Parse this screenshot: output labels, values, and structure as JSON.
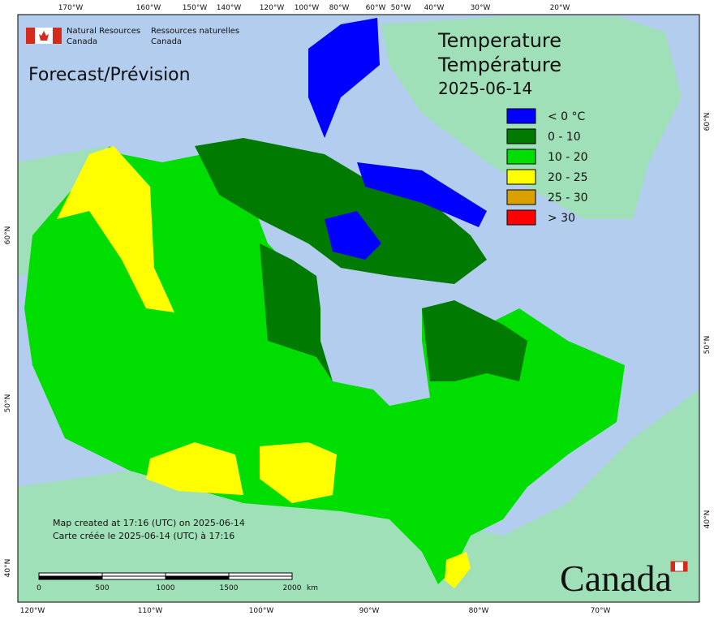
{
  "header": {
    "agency_en": "Natural Resources",
    "agency_en_2": "Canada",
    "agency_fr": "Ressources naturelles",
    "agency_fr_2": "Canada"
  },
  "product": "Forecast/Prévision",
  "title": {
    "en": "Temperature",
    "fr": "Température",
    "date": "2025-06-14"
  },
  "legend": [
    {
      "label": "< 0 °C",
      "color": "#0000ff"
    },
    {
      "label": "0 - 10",
      "color": "#007a00"
    },
    {
      "label": "10 - 20",
      "color": "#00dd00"
    },
    {
      "label": "20 - 25",
      "color": "#ffff00"
    },
    {
      "label": "25 - 30",
      "color": "#d9a000"
    },
    {
      "label": "> 30",
      "color": "#ff0000"
    }
  ],
  "graticule": {
    "top": [
      "170°W",
      "160°W",
      "150°W",
      "140°W",
      "120°W",
      "100°W",
      "80°W",
      "60°W",
      "50°W",
      "40°W",
      "30°W",
      "20°W"
    ],
    "bottom": [
      "120°W",
      "110°W",
      "100°W",
      "90°W",
      "80°W",
      "70°W"
    ],
    "left": [
      "60°N",
      "50°N",
      "40°N"
    ],
    "right": [
      "60°N",
      "50°N",
      "40°N"
    ]
  },
  "credit": {
    "en": "Map created at 17:16 (UTC) on 2025-06-14",
    "fr": "Carte créée le 2025-06-14 (UTC) à 17:16"
  },
  "scale": {
    "ticks": [
      "0",
      "500",
      "1000",
      "1500",
      "2000"
    ],
    "unit": "km"
  },
  "wordmark": "Canada"
}
